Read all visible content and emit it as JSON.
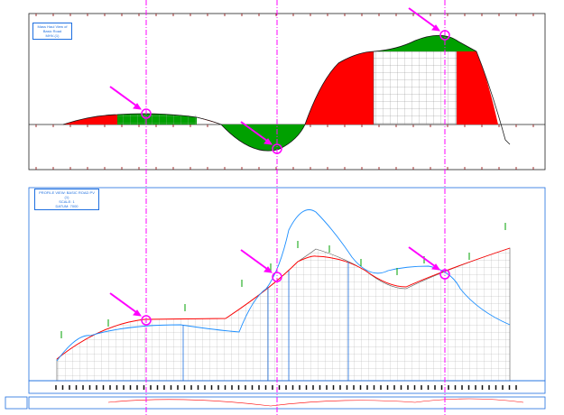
{
  "mass_haul_view": {
    "title_lines": [
      "Mass Haul View of",
      "Basic Road",
      "MHV-(1)"
    ],
    "colors": {
      "cut_fill_positive": "#00a000",
      "cut_fill_negative": "#ff0000",
      "frame": "#1e1e1e",
      "ticks": "#8b0000"
    }
  },
  "profile_view": {
    "title_lines": [
      "PROFILE VIEW: BASIC ROAD PV (1)",
      "SCALE: 1",
      "DATUM: 7000"
    ],
    "colors": {
      "existing_ground": "#1e8fff",
      "design_profile": "#ff0000",
      "grid": "#999999"
    }
  },
  "markers": {
    "color": "#ff00ff",
    "count": 3
  }
}
